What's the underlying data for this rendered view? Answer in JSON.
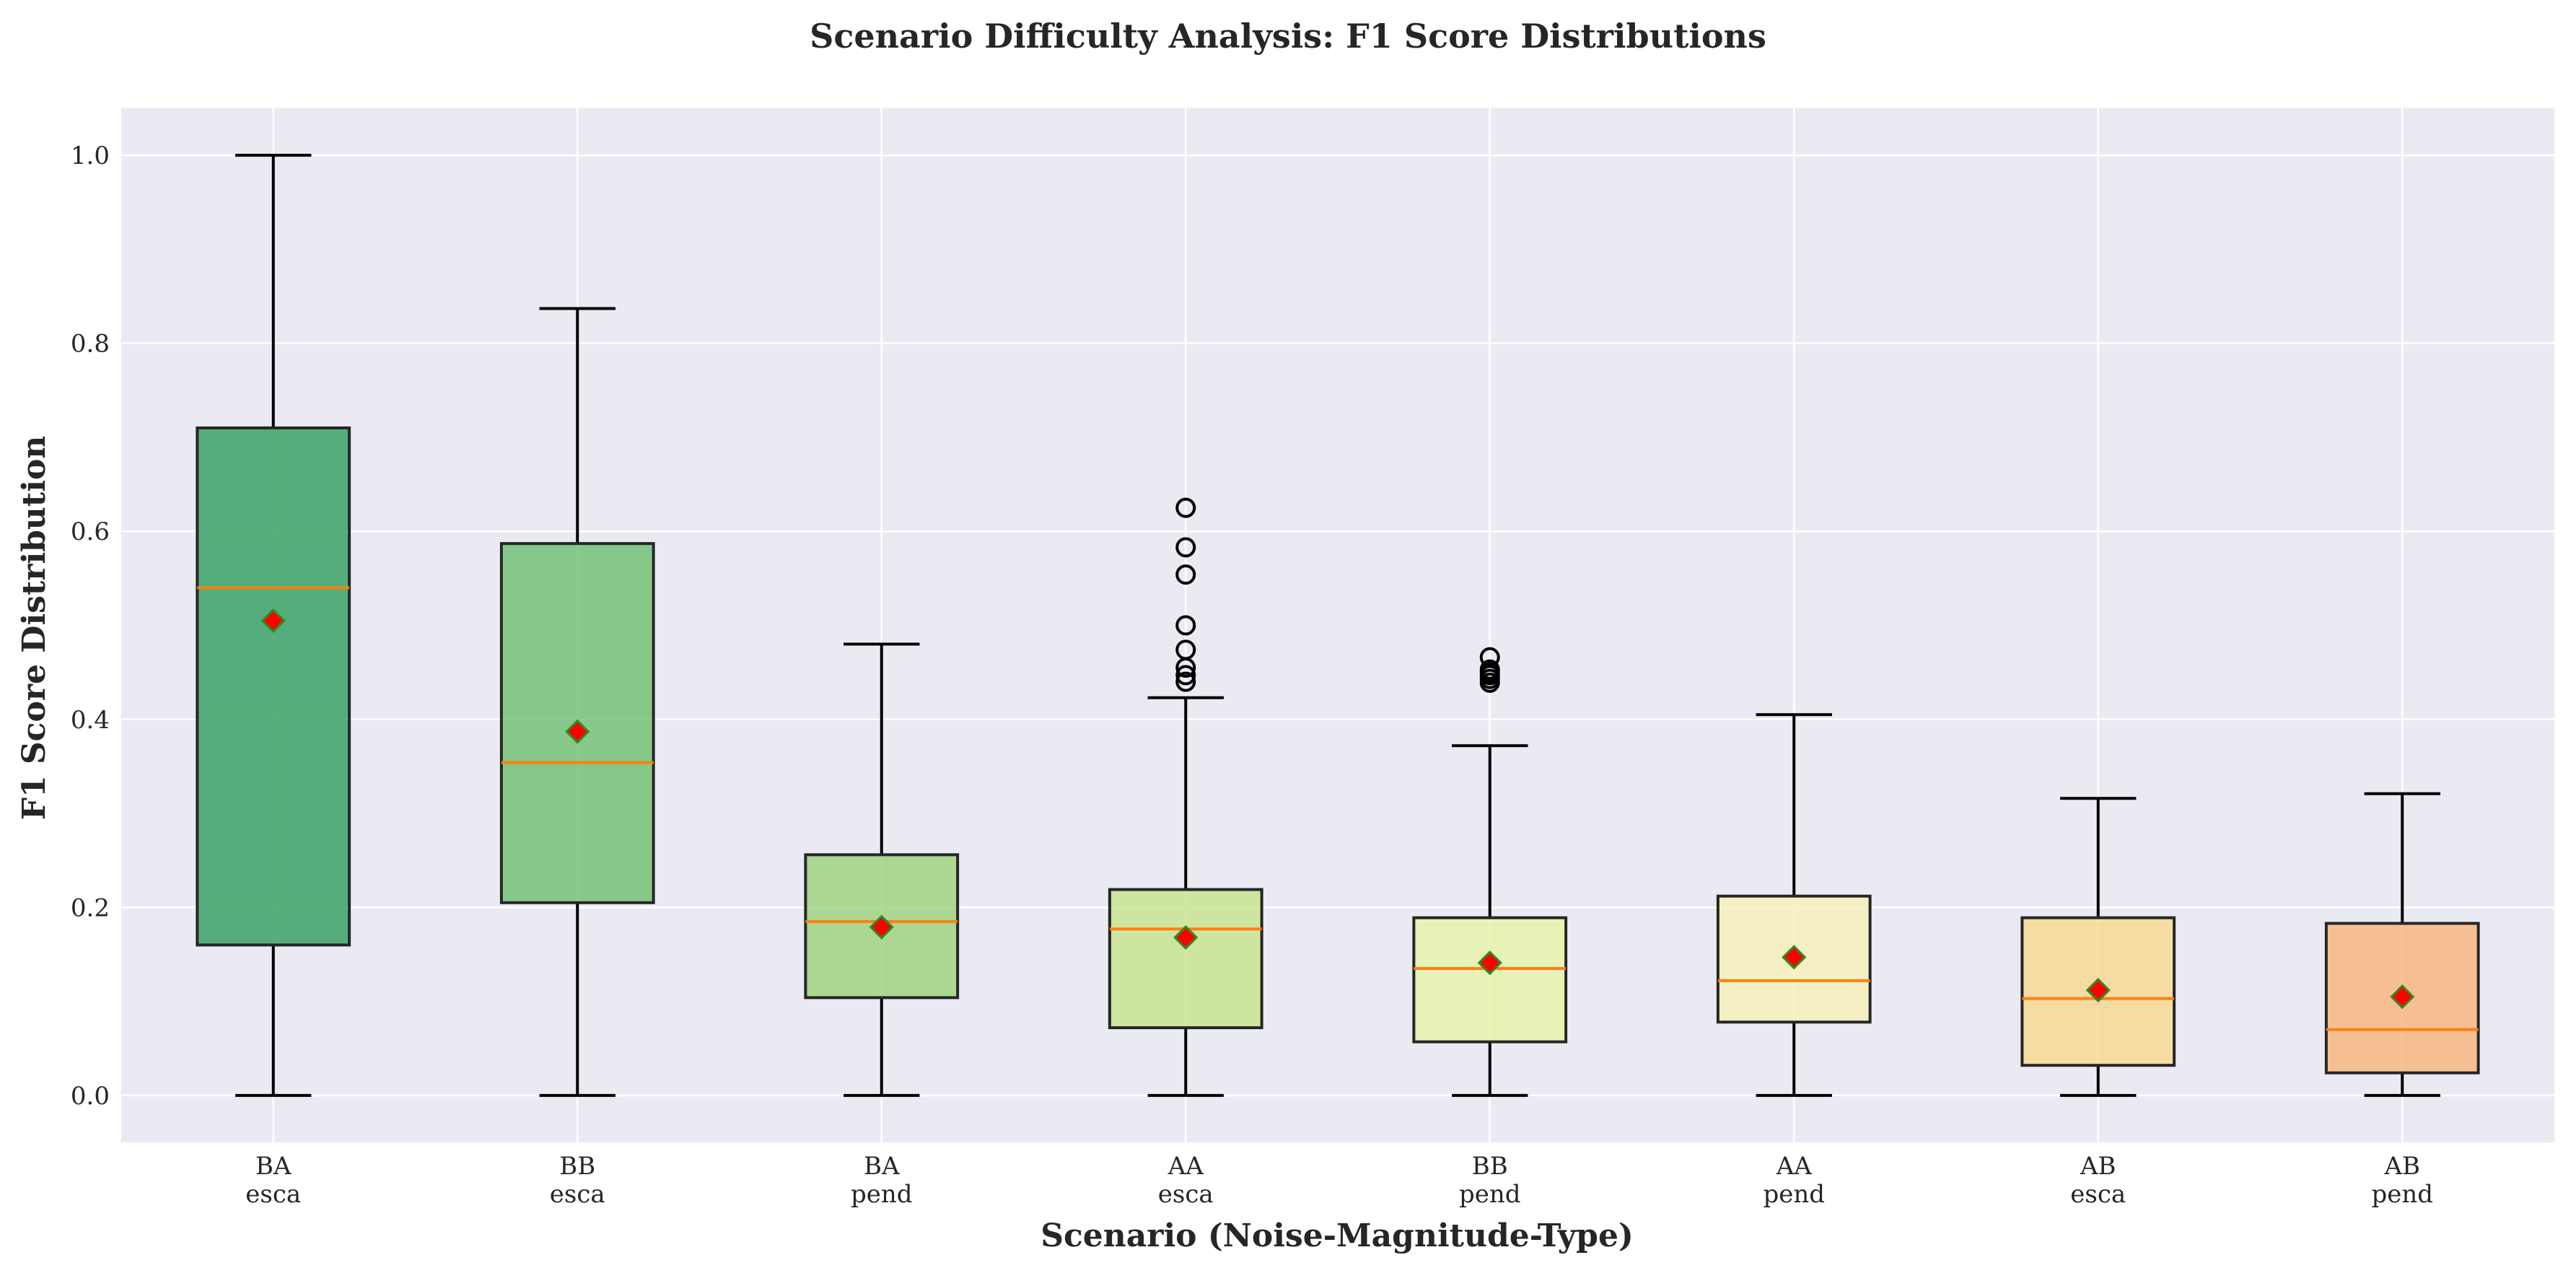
{
  "chart_data": {
    "type": "box",
    "title": "Scenario Difficulty Analysis: F1 Score Distributions",
    "xlabel": "Scenario (Noise-Magnitude-Type)",
    "ylabel": "F1 Score Distribution",
    "ylim": [
      -0.05,
      1.05
    ],
    "yticks": [
      0.0,
      0.2,
      0.4,
      0.6,
      0.8,
      1.0
    ],
    "ytick_labels": [
      "0.0",
      "0.2",
      "0.4",
      "0.6",
      "0.8",
      "1.0"
    ],
    "grid": true,
    "categories": [
      {
        "line1": "BA",
        "line2": "esca"
      },
      {
        "line1": "BB",
        "line2": "esca"
      },
      {
        "line1": "BA",
        "line2": "pend"
      },
      {
        "line1": "AA",
        "line2": "esca"
      },
      {
        "line1": "BB",
        "line2": "pend"
      },
      {
        "line1": "AA",
        "line2": "pend"
      },
      {
        "line1": "AB",
        "line2": "esca"
      },
      {
        "line1": "AB",
        "line2": "pend"
      }
    ],
    "boxes": [
      {
        "whisker_low": 0.0,
        "q1": 0.16,
        "median": 0.54,
        "q3": 0.71,
        "whisker_high": 1.0,
        "mean": 0.505,
        "outliers": [],
        "color": "#2e9e5b"
      },
      {
        "whisker_low": 0.0,
        "q1": 0.205,
        "median": 0.354,
        "q3": 0.587,
        "whisker_high": 0.837,
        "mean": 0.387,
        "outliers": [],
        "color": "#6cbf6e"
      },
      {
        "whisker_low": 0.0,
        "q1": 0.104,
        "median": 0.185,
        "q3": 0.256,
        "whisker_high": 0.48,
        "mean": 0.179,
        "outliers": [],
        "color": "#9bd27a"
      },
      {
        "whisker_low": 0.0,
        "q1": 0.072,
        "median": 0.177,
        "q3": 0.219,
        "whisker_high": 0.423,
        "mean": 0.168,
        "outliers": [
          0.44,
          0.447,
          0.455,
          0.474,
          0.5,
          0.554,
          0.583,
          0.625
        ],
        "color": "#c5e48a"
      },
      {
        "whisker_low": 0.0,
        "q1": 0.057,
        "median": 0.135,
        "q3": 0.189,
        "whisker_high": 0.372,
        "mean": 0.141,
        "outliers": [
          0.439,
          0.443,
          0.447,
          0.45,
          0.453,
          0.466
        ],
        "color": "#e6f4a8"
      },
      {
        "whisker_low": 0.0,
        "q1": 0.078,
        "median": 0.122,
        "q3": 0.212,
        "whisker_high": 0.405,
        "mean": 0.147,
        "outliers": [],
        "color": "#f8f0b8"
      },
      {
        "whisker_low": 0.0,
        "q1": 0.032,
        "median": 0.103,
        "q3": 0.189,
        "whisker_high": 0.316,
        "mean": 0.112,
        "outliers": [],
        "color": "#f8d88e"
      },
      {
        "whisker_low": 0.0,
        "q1": 0.024,
        "median": 0.07,
        "q3": 0.183,
        "whisker_high": 0.321,
        "mean": 0.105,
        "outliers": [],
        "color": "#f7b478"
      }
    ],
    "colors": {
      "plot_background": "#eaeaf2",
      "median": "#ff7f0e",
      "mean_fill": "#ff0000",
      "mean_edge": "#2e8b22"
    }
  }
}
